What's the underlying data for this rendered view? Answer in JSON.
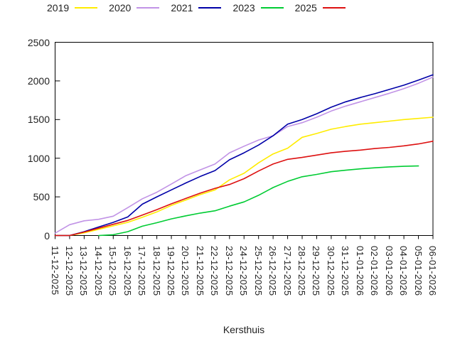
{
  "chart_data": {
    "type": "line",
    "title": "",
    "xlabel": "Kersthuis",
    "ylabel": "",
    "ylim": [
      0,
      2500
    ],
    "yticks": [
      0,
      500,
      1000,
      1500,
      2000,
      2500
    ],
    "grid": false,
    "legend_position": "top-horizontal",
    "x": [
      "11-12-2025",
      "12-12-2025",
      "13-12-2025",
      "14-12-2025",
      "15-12-2025",
      "16-12-2025",
      "17-12-2025",
      "18-12-2025",
      "19-12-2025",
      "20-12-2025",
      "21-12-2025",
      "22-12-2025",
      "23-12-2025",
      "24-12-2025",
      "25-12-2025",
      "26-12-2025",
      "27-12-2025",
      "28-12-2025",
      "29-12-2025",
      "30-12-2025",
      "31-12-2025",
      "01-01-2026",
      "02-01-2026",
      "03-01-2026",
      "04-01-2026",
      "05-01-2026",
      "06-01-2026"
    ],
    "series": [
      {
        "name": "2019",
        "color": "#FFEC00",
        "values": [
          0,
          0,
          35,
          80,
          125,
          170,
          235,
          305,
          390,
          460,
          530,
          590,
          720,
          805,
          940,
          1055,
          1130,
          1270,
          1320,
          1375,
          1410,
          1440,
          1460,
          1480,
          1500,
          1515,
          1530
        ]
      },
      {
        "name": "2020",
        "color": "#C193E6",
        "values": [
          30,
          140,
          190,
          210,
          250,
          360,
          475,
          560,
          665,
          775,
          850,
          925,
          1070,
          1155,
          1235,
          1290,
          1410,
          1460,
          1530,
          1610,
          1675,
          1730,
          1785,
          1840,
          1900,
          1970,
          2050
        ]
      },
      {
        "name": "2021",
        "color": "#0000A8",
        "values": [
          0,
          0,
          50,
          110,
          170,
          240,
          405,
          500,
          590,
          680,
          765,
          840,
          980,
          1070,
          1170,
          1290,
          1440,
          1500,
          1575,
          1660,
          1730,
          1785,
          1835,
          1890,
          1945,
          2010,
          2080
        ]
      },
      {
        "name": "2023",
        "color": "#00CC33",
        "values": [
          null,
          null,
          null,
          0,
          10,
          50,
          120,
          165,
          215,
          255,
          290,
          320,
          380,
          435,
          520,
          620,
          700,
          760,
          790,
          825,
          845,
          862,
          876,
          888,
          895,
          900,
          null
        ]
      },
      {
        "name": "2025",
        "color": "#DD1111",
        "values": [
          0,
          0,
          45,
          95,
          145,
          195,
          265,
          335,
          410,
          480,
          550,
          610,
          660,
          735,
          835,
          925,
          985,
          1010,
          1040,
          1070,
          1090,
          1105,
          1125,
          1140,
          1160,
          1185,
          1220
        ]
      }
    ]
  }
}
